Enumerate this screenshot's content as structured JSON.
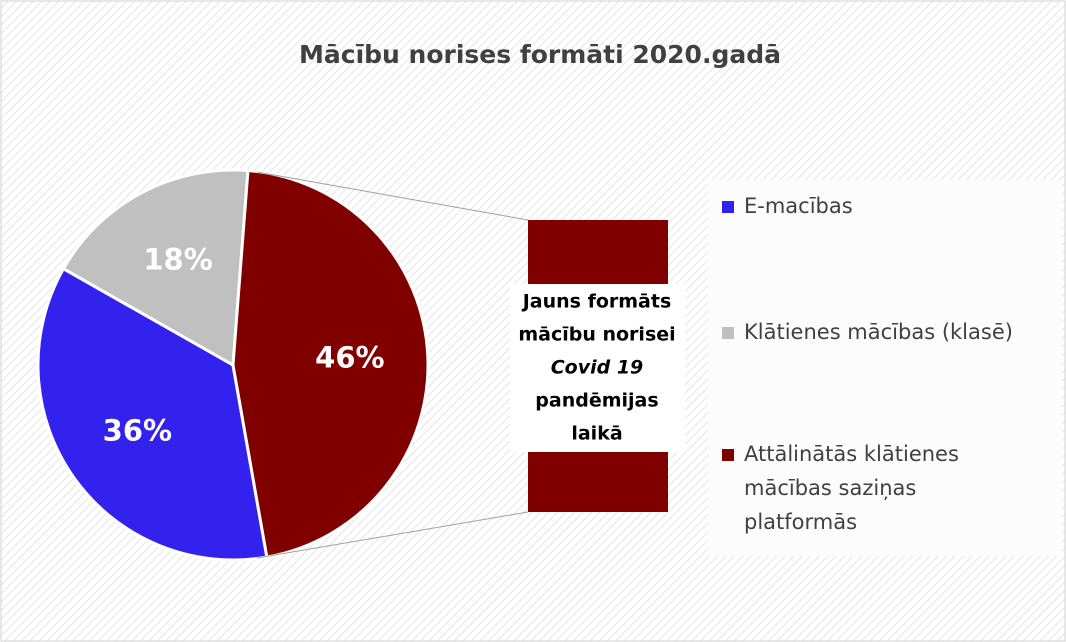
{
  "chart_data": {
    "type": "pie",
    "title": "Mācību norises formāti 2020.gadā",
    "categories": [
      "E-macības",
      "Klātienes mācības (klasē)",
      "Attālinātās klātienes mācības saziņas platformās"
    ],
    "values": [
      36,
      18,
      46
    ],
    "value_labels": [
      "36%",
      "18%",
      "46%"
    ],
    "colors": [
      "#3322ee",
      "#c0c0c0",
      "#800000"
    ],
    "annotation": [
      "Jauns  formāts",
      "mācību norisei",
      "Covid 19",
      "pandēmijas",
      "laikā"
    ]
  }
}
